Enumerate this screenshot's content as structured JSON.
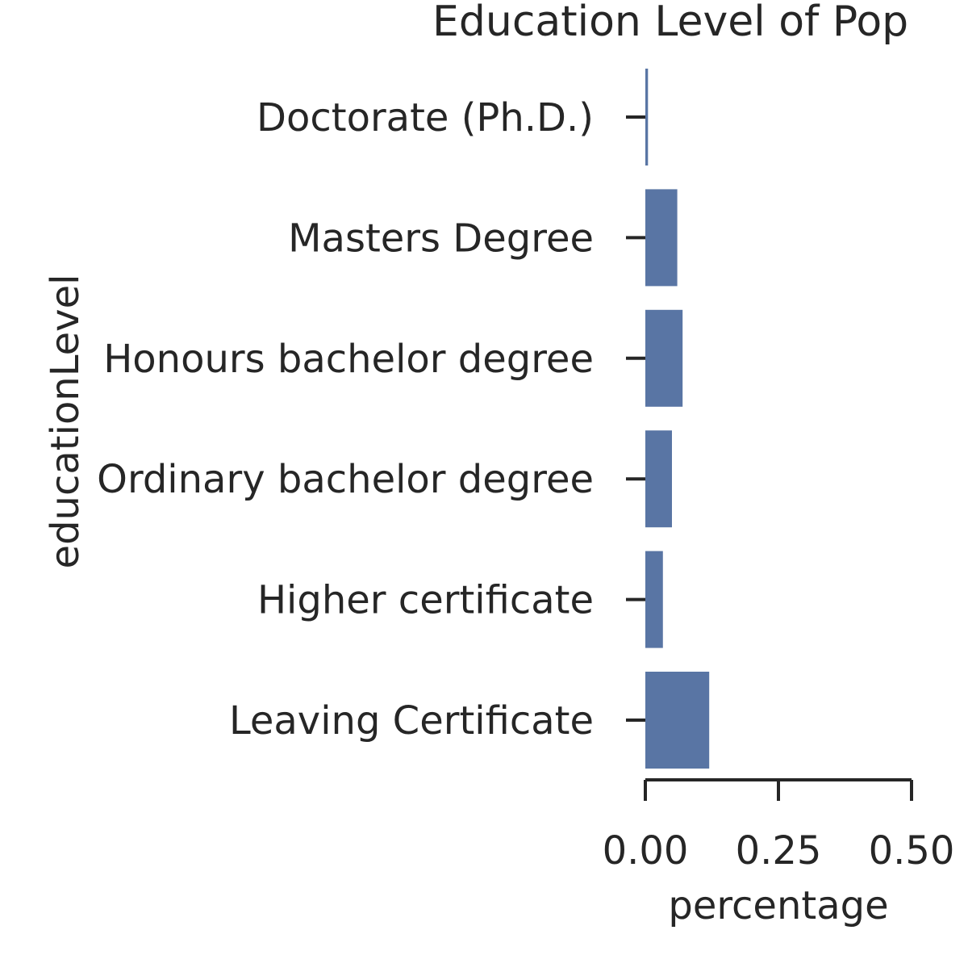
{
  "chart_data": {
    "type": "bar",
    "orientation": "horizontal",
    "title": "Education Level of Pop",
    "xlabel": "percentage",
    "ylabel": "educationLevel",
    "categories": [
      "Doctorate (Ph.D.)",
      "Masters Degree",
      "Honours bachelor degree",
      "Ordinary bachelor degree",
      "Higher certificate",
      "Leaving Certificate"
    ],
    "values": [
      0.005,
      0.06,
      0.07,
      0.05,
      0.033,
      0.12
    ],
    "xlim": [
      0,
      0.5
    ],
    "xticks": [
      "0.00",
      "0.25",
      "0.50"
    ],
    "grid": false,
    "bar_color": "#5975a4",
    "axis_color": "#262626"
  }
}
